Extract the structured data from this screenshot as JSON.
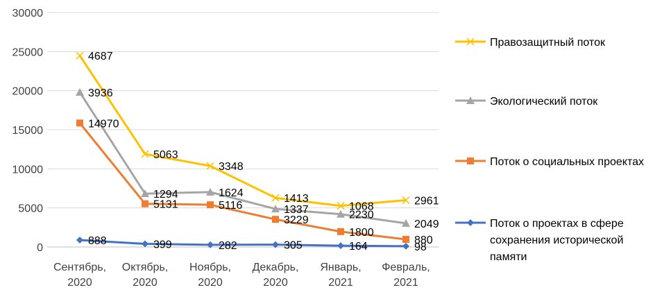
{
  "chart_data": {
    "type": "line",
    "stacked": true,
    "title": "",
    "xlabel": "",
    "ylabel": "",
    "ylim": [
      0,
      30000
    ],
    "yticks": [
      0,
      5000,
      10000,
      15000,
      20000,
      25000,
      30000
    ],
    "grid": true,
    "legend_position": "right",
    "categories": [
      [
        "Сентябрь,",
        "2020"
      ],
      [
        "Октябрь,",
        "2020"
      ],
      [
        "Ноябрь,",
        "2020"
      ],
      [
        "Декабрь,",
        "2020"
      ],
      [
        "Январь,",
        "2021"
      ],
      [
        "Февраль,",
        "2021"
      ]
    ],
    "series": [
      {
        "name": "Поток о проектах в сфере сохранения исторической памяти",
        "legend_lines": [
          "Поток о проектах в сфере",
          "сохранения исторической",
          "памяти"
        ],
        "values": [
          888,
          399,
          282,
          305,
          164,
          98
        ],
        "color": "#4472c4",
        "marker": "diamond"
      },
      {
        "name": "Поток о социальных проектах",
        "legend_lines": [
          "Поток о социальных проектах"
        ],
        "values": [
          14970,
          5131,
          5116,
          3229,
          1800,
          880
        ],
        "color": "#ed7d31",
        "marker": "square"
      },
      {
        "name": "Экологический поток",
        "legend_lines": [
          "Экологический поток"
        ],
        "values": [
          3936,
          1294,
          1624,
          1337,
          2230,
          2049
        ],
        "color": "#a5a5a5",
        "marker": "triangle"
      },
      {
        "name": "Правозащитный поток",
        "legend_lines": [
          "Правозащитный поток"
        ],
        "values": [
          4687,
          5063,
          3348,
          1413,
          1068,
          2961
        ],
        "color": "#ffc000",
        "marker": "x"
      }
    ]
  }
}
